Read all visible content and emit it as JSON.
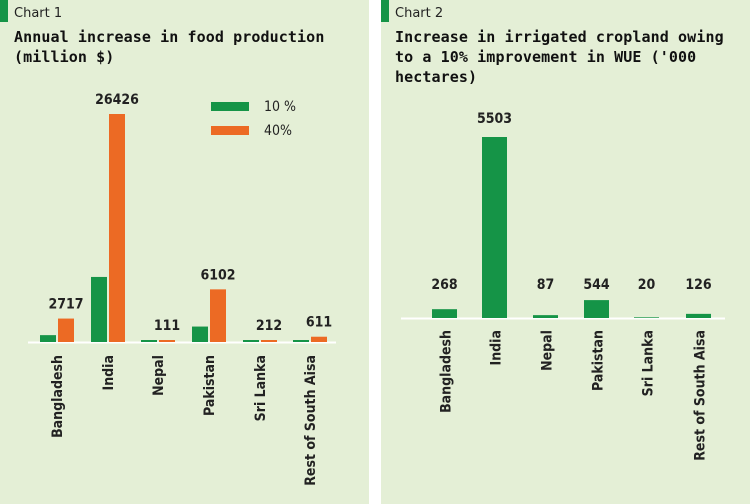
{
  "colors": {
    "green": "#159447",
    "orange": "#ec6a24",
    "panel_bg": "#e4efd6",
    "axis": "#ffffff"
  },
  "chart_data": [
    {
      "type": "bar",
      "label": "Chart 1",
      "title": "Annual increase in food production (million $)",
      "categories": [
        "Bangladesh",
        "India",
        "Nepal",
        "Pakistan",
        "Sri Lanka",
        "Rest of South Aisa"
      ],
      "series": [
        {
          "name": "10 %",
          "color": "#159447",
          "values": [
            795,
            7540,
            45,
            1790,
            50,
            160
          ]
        },
        {
          "name": "40%",
          "color": "#ec6a24",
          "values": [
            2717,
            26426,
            111,
            6102,
            212,
            611
          ]
        }
      ],
      "value_labels": [
        "2717",
        "26426",
        "111",
        "6102",
        "212",
        "611"
      ],
      "legend": "top-right",
      "ylim": [
        0,
        27000
      ]
    },
    {
      "type": "bar",
      "label": "Chart 2",
      "title": "Increase in irrigated cropland owing to a 10% improvement in WUE ('000 hectares)",
      "categories": [
        "Bangladesh",
        "India",
        "Nepal",
        "Pakistan",
        "Sri Lanka",
        "Rest of South Aisa"
      ],
      "series": [
        {
          "color": "#159447",
          "values": [
            268,
            5503,
            87,
            544,
            20,
            126
          ]
        }
      ],
      "value_labels": [
        "268",
        "5503",
        "87",
        "544",
        "20",
        "126"
      ],
      "ylim": [
        0,
        5600
      ]
    }
  ]
}
